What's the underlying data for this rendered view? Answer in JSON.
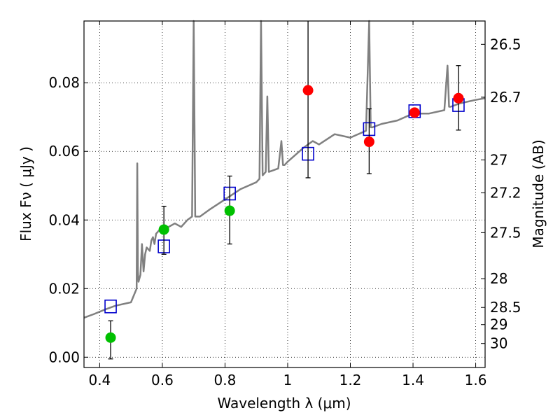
{
  "chart_data": {
    "type": "scatter",
    "xlabel": "Wavelength  λ (μm)",
    "ylabel": "Flux  Fν  ( μJy )",
    "ylabel_right": "Magnitude (AB)",
    "xlim": [
      0.35,
      1.63
    ],
    "ylim": [
      -0.003,
      0.098
    ],
    "grid": true,
    "x_ticks": [
      0.4,
      0.6,
      0.8,
      1.0,
      1.2,
      1.4,
      1.6
    ],
    "x_tick_labels": [
      "0.4",
      "0.6",
      "0.8",
      "1",
      "1.2",
      "1.4",
      "1.6"
    ],
    "y_ticks": [
      0.0,
      0.02,
      0.04,
      0.06,
      0.08
    ],
    "y_tick_labels": [
      "0.00",
      "0.02",
      "0.04",
      "0.06",
      "0.08"
    ],
    "mag_ticks": [
      {
        "label": "26.5",
        "flux": 0.0912
      },
      {
        "label": "26.7",
        "flux": 0.0758
      },
      {
        "label": "27",
        "flux": 0.0575
      },
      {
        "label": "27.2",
        "flux": 0.0479
      },
      {
        "label": "27.5",
        "flux": 0.0363
      },
      {
        "label": "28",
        "flux": 0.0229
      },
      {
        "label": "28.5",
        "flux": 0.0145
      },
      {
        "label": "29",
        "flux": 0.0095
      },
      {
        "label": "30",
        "flux": 0.004
      }
    ],
    "series": [
      {
        "marker": "line",
        "color": "#808080",
        "x": [
          0.35,
          0.38,
          0.42,
          0.45,
          0.5,
          0.518,
          0.52,
          0.522,
          0.524,
          0.53,
          0.535,
          0.54,
          0.545,
          0.55,
          0.56,
          0.565,
          0.57,
          0.575,
          0.58,
          0.59,
          0.6,
          0.61,
          0.62,
          0.64,
          0.66,
          0.68,
          0.695,
          0.7,
          0.705,
          0.72,
          0.75,
          0.8,
          0.85,
          0.9,
          0.91,
          0.915,
          0.92,
          0.93,
          0.935,
          0.94,
          0.97,
          0.98,
          0.985,
          0.99,
          1.0,
          1.05,
          1.08,
          1.1,
          1.15,
          1.2,
          1.25,
          1.26,
          1.265,
          1.27,
          1.3,
          1.35,
          1.4,
          1.45,
          1.5,
          1.51,
          1.515,
          1.52,
          1.55,
          1.6,
          1.63
        ],
        "y": [
          0.0115,
          0.0125,
          0.014,
          0.015,
          0.016,
          0.02,
          0.0565,
          0.025,
          0.022,
          0.024,
          0.033,
          0.025,
          0.03,
          0.032,
          0.031,
          0.034,
          0.035,
          0.033,
          0.036,
          0.037,
          0.036,
          0.038,
          0.038,
          0.039,
          0.038,
          0.04,
          0.041,
          0.098,
          0.041,
          0.041,
          0.043,
          0.046,
          0.049,
          0.051,
          0.052,
          0.098,
          0.053,
          0.054,
          0.076,
          0.054,
          0.055,
          0.063,
          0.056,
          0.056,
          0.057,
          0.061,
          0.063,
          0.062,
          0.065,
          0.064,
          0.066,
          0.098,
          0.067,
          0.067,
          0.068,
          0.069,
          0.071,
          0.071,
          0.072,
          0.085,
          0.073,
          0.073,
          0.074,
          0.075,
          0.0755
        ]
      },
      {
        "marker": "open-square",
        "color": "#0000cc",
        "x": [
          0.435,
          0.605,
          0.815,
          1.065,
          1.26,
          1.405,
          1.545
        ],
        "y": [
          0.0148,
          0.0323,
          0.0477,
          0.0593,
          0.0665,
          0.0717,
          0.0735
        ]
      },
      {
        "marker": "filled-circle",
        "color": "#00c000",
        "x": [
          0.435,
          0.605,
          0.815
        ],
        "y": [
          0.0057,
          0.0372,
          0.0427
        ],
        "err_low": [
          0.0062,
          0.0072,
          0.0097
        ],
        "err_high": [
          0.0049,
          0.0068,
          0.0101
        ]
      },
      {
        "marker": "filled-circle",
        "color": "#ff0000",
        "x": [
          1.065,
          1.26,
          1.405,
          1.545
        ],
        "y": [
          0.0778,
          0.0628,
          0.0713,
          0.0755
        ],
        "err_low": [
          0.0255,
          0.0093,
          0.0,
          0.0093
        ],
        "err_high": [
          0.0232,
          0.0096,
          0.0,
          0.0095
        ]
      }
    ]
  }
}
